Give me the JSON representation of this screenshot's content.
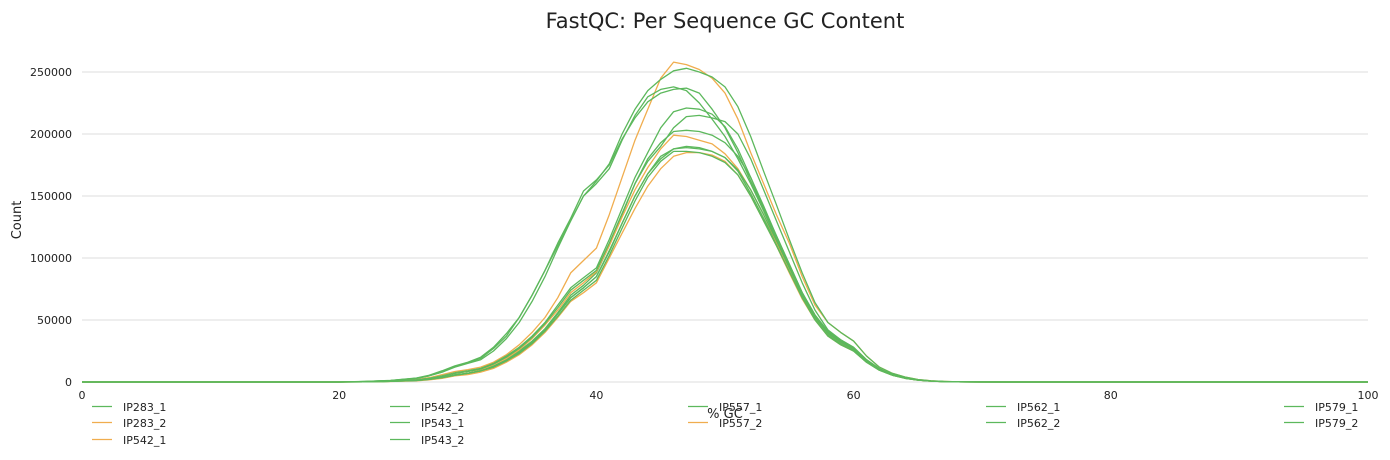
{
  "chart_data": {
    "type": "line",
    "title": "FastQC: Per Sequence GC Content",
    "xlabel": "% GC",
    "ylabel": "Count",
    "xlim": [
      0,
      100
    ],
    "ylim": [
      0,
      275000
    ],
    "xticks": [
      "0",
      "20",
      "40",
      "60",
      "80",
      "100"
    ],
    "yticks": [
      "0",
      "50000",
      "100000",
      "150000",
      "200000",
      "250000"
    ],
    "grid": "horizontal",
    "legend_position": "bottom",
    "x": [
      0,
      20,
      22,
      24,
      26,
      27,
      28,
      29,
      30,
      31,
      32,
      33,
      34,
      35,
      36,
      37,
      38,
      39,
      40,
      41,
      42,
      43,
      44,
      45,
      46,
      47,
      48,
      49,
      50,
      51,
      52,
      53,
      54,
      55,
      56,
      57,
      58,
      59,
      60,
      61,
      62,
      63,
      64,
      65,
      66,
      67,
      68,
      70,
      72,
      75,
      80,
      90,
      100
    ],
    "series": [
      {
        "name": "IP283_1",
        "color": "#5cb85c",
        "values": [
          0,
          0,
          200,
          600,
          1500,
          2500,
          4000,
          6000,
          7000,
          9000,
          13000,
          18000,
          25000,
          33000,
          43000,
          56000,
          70000,
          78000,
          88000,
          110000,
          135000,
          160000,
          178000,
          190000,
          205000,
          214000,
          215000,
          213000,
          210000,
          200000,
          180000,
          155000,
          130000,
          105000,
          80000,
          58000,
          42000,
          34000,
          28000,
          18000,
          11000,
          6000,
          3500,
          1800,
          900,
          400,
          150,
          50,
          0,
          0,
          0,
          0,
          0
        ]
      },
      {
        "name": "IP283_2",
        "color": "#f0ad4e",
        "values": [
          0,
          0,
          300,
          800,
          2000,
          3500,
          6000,
          8500,
          10000,
          12000,
          16000,
          22000,
          30000,
          40000,
          52000,
          68000,
          88000,
          98000,
          108000,
          135000,
          165000,
          195000,
          220000,
          245000,
          258000,
          256000,
          252000,
          245000,
          233000,
          212000,
          185000,
          160000,
          135000,
          112000,
          85000,
          62000,
          48000,
          40000,
          33000,
          21000,
          12000,
          7000,
          4000,
          2000,
          1000,
          500,
          200,
          50,
          0,
          0,
          0,
          0,
          0
        ]
      },
      {
        "name": "IP542_1",
        "color": "#f0ad4e",
        "values": [
          0,
          0,
          150,
          400,
          1000,
          1800,
          3000,
          5000,
          6000,
          8000,
          11000,
          16000,
          22000,
          30000,
          40000,
          52000,
          65000,
          72000,
          80000,
          100000,
          120000,
          140000,
          158000,
          172000,
          182000,
          185000,
          185000,
          183000,
          178000,
          167000,
          150000,
          130000,
          110000,
          88000,
          67000,
          50000,
          37000,
          30000,
          25000,
          16000,
          9500,
          5500,
          3000,
          1500,
          700,
          300,
          100,
          40,
          0,
          0,
          0,
          0,
          0
        ]
      },
      {
        "name": "IP542_2",
        "color": "#5cb85c",
        "values": [
          0,
          0,
          200,
          500,
          1200,
          2200,
          3500,
          5500,
          7000,
          9000,
          12000,
          17000,
          24000,
          32000,
          42000,
          55000,
          68000,
          76000,
          85000,
          105000,
          128000,
          150000,
          168000,
          180000,
          188000,
          190000,
          189000,
          186000,
          181000,
          170000,
          152000,
          132000,
          112000,
          90000,
          68000,
          51000,
          38000,
          31000,
          25000,
          16000,
          9500,
          5500,
          3000,
          1500,
          700,
          300,
          100,
          40,
          0,
          0,
          0,
          0,
          0
        ]
      },
      {
        "name": "IP543_1",
        "color": "#5cb85c",
        "values": [
          0,
          0,
          400,
          1200,
          3000,
          5000,
          8000,
          12000,
          15000,
          18000,
          25000,
          35000,
          48000,
          65000,
          85000,
          108000,
          130000,
          150000,
          160000,
          172000,
          195000,
          215000,
          230000,
          236000,
          238000,
          235000,
          225000,
          212000,
          198000,
          180000,
          160000,
          138000,
          115000,
          92000,
          70000,
          52000,
          40000,
          33000,
          27000,
          17000,
          10000,
          6000,
          3200,
          1600,
          800,
          300,
          120,
          40,
          0,
          0,
          0,
          0,
          0
        ]
      },
      {
        "name": "IP543_2",
        "color": "#5cb85c",
        "values": [
          0,
          0,
          450,
          1300,
          3200,
          5500,
          9000,
          13000,
          16000,
          20000,
          28000,
          39000,
          52000,
          70000,
          90000,
          112000,
          132000,
          154000,
          163000,
          175000,
          196000,
          213000,
          226000,
          233000,
          236000,
          237000,
          233000,
          220000,
          205000,
          185000,
          162000,
          140000,
          117000,
          94000,
          72000,
          54000,
          41000,
          34000,
          28000,
          18000,
          10500,
          6200,
          3300,
          1700,
          800,
          300,
          120,
          40,
          0,
          0,
          0,
          0,
          0
        ]
      },
      {
        "name": "IP557_1",
        "color": "#5cb85c",
        "values": [
          0,
          0,
          300,
          700,
          1800,
          3000,
          5000,
          7500,
          9000,
          11000,
          15000,
          21000,
          28000,
          37000,
          48000,
          62000,
          76000,
          84000,
          92000,
          115000,
          140000,
          165000,
          185000,
          205000,
          218000,
          221000,
          220000,
          216000,
          206000,
          188000,
          165000,
          140000,
          118000,
          95000,
          72000,
          54000,
          40000,
          33000,
          27000,
          17000,
          10000,
          6000,
          3200,
          1600,
          800,
          300,
          120,
          40,
          0,
          0,
          0,
          0,
          0
        ]
      },
      {
        "name": "IP557_2",
        "color": "#f0ad4e",
        "values": [
          0,
          0,
          250,
          600,
          1500,
          2700,
          4500,
          7000,
          8500,
          10000,
          14000,
          19000,
          26000,
          35000,
          46000,
          58000,
          72000,
          80000,
          89000,
          110000,
          133000,
          155000,
          173000,
          188000,
          199000,
          198000,
          195000,
          192000,
          184000,
          172000,
          155000,
          135000,
          113000,
          91000,
          70000,
          52000,
          39000,
          32000,
          26000,
          16500,
          9800,
          5700,
          3100,
          1500,
          700,
          300,
          100,
          40,
          0,
          0,
          0,
          0,
          0
        ]
      },
      {
        "name": "IP562_1",
        "color": "#5cb85c",
        "values": [
          0,
          0,
          200,
          500,
          1200,
          2200,
          3600,
          5600,
          7000,
          9000,
          12000,
          17000,
          24000,
          32000,
          42000,
          55000,
          68000,
          76000,
          85000,
          106000,
          128000,
          150000,
          168000,
          182000,
          188000,
          189000,
          188000,
          186000,
          181000,
          171000,
          155000,
          135000,
          114000,
          92000,
          70000,
          52000,
          39000,
          32000,
          26000,
          16500,
          9800,
          5700,
          3100,
          1500,
          700,
          300,
          100,
          40,
          0,
          0,
          0,
          0,
          0
        ]
      },
      {
        "name": "IP562_2",
        "color": "#5cb85c",
        "values": [
          0,
          0,
          250,
          600,
          1600,
          2800,
          4500,
          7000,
          8500,
          10500,
          14500,
          20000,
          27000,
          36000,
          47000,
          60000,
          74000,
          82000,
          90000,
          112000,
          136000,
          160000,
          180000,
          193000,
          202000,
          203000,
          202000,
          199000,
          193000,
          182000,
          165000,
          142000,
          118000,
          95000,
          72000,
          53000,
          40000,
          33000,
          27000,
          17000,
          10000,
          6000,
          3200,
          1600,
          800,
          300,
          120,
          40,
          0,
          0,
          0,
          0,
          0
        ]
      },
      {
        "name": "IP579_1",
        "color": "#5cb85c",
        "values": [
          0,
          0,
          200,
          500,
          1200,
          2200,
          3600,
          5500,
          7000,
          9000,
          12000,
          17000,
          23000,
          31000,
          41000,
          53000,
          66000,
          74000,
          82000,
          102000,
          124000,
          146000,
          165000,
          178000,
          186000,
          186000,
          185000,
          182000,
          177000,
          167000,
          150000,
          130000,
          110000,
          89000,
          68000,
          50000,
          37000,
          30000,
          25000,
          16000,
          9500,
          5500,
          3000,
          1500,
          700,
          300,
          100,
          40,
          0,
          0,
          0,
          0,
          0
        ]
      },
      {
        "name": "IP579_2",
        "color": "#5cb85c",
        "values": [
          0,
          0,
          400,
          1200,
          3000,
          5000,
          8000,
          12500,
          15500,
          19000,
          27000,
          37000,
          52000,
          70000,
          90000,
          110000,
          130000,
          150000,
          162000,
          176000,
          200000,
          220000,
          235000,
          244000,
          251000,
          253000,
          250000,
          246000,
          238000,
          222000,
          198000,
          170000,
          143000,
          115000,
          88000,
          64000,
          48000,
          40000,
          33000,
          21000,
          12000,
          7000,
          4000,
          2000,
          1000,
          500,
          200,
          50,
          0,
          0,
          0,
          0,
          0
        ]
      }
    ]
  }
}
